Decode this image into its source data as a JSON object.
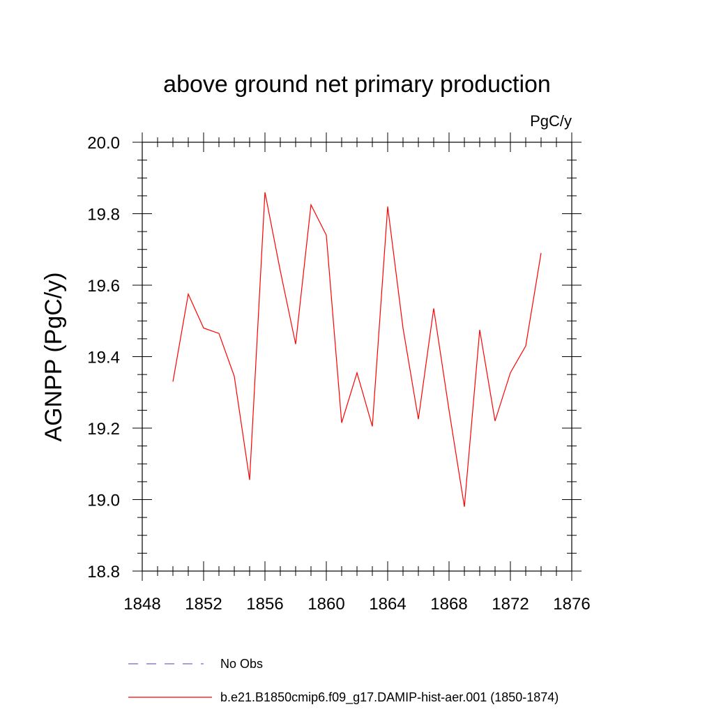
{
  "chart_data": {
    "type": "line",
    "title": "above ground net primary production",
    "units_label": "PgC/y",
    "ylabel": "AGNPP  (PgC/y)",
    "xlabel": "",
    "xlim": [
      1848,
      1876
    ],
    "ylim": [
      18.8,
      20.0
    ],
    "x_ticks": [
      "1848",
      "1852",
      "1856",
      "1860",
      "1864",
      "1868",
      "1872",
      "1876"
    ],
    "y_ticks": [
      "18.8",
      "19.0",
      "19.2",
      "19.4",
      "19.6",
      "19.8",
      "20.0"
    ],
    "grid": false,
    "legend_placement": "bottom",
    "series": [
      {
        "name": "No Obs",
        "color": "#7b68c8",
        "style": "dashed",
        "x": [],
        "values": []
      },
      {
        "name": "b.e21.B1850cmip6.f09_g17.DAMIP-hist-aer.001 (1850-1874)",
        "color": "#ff0000",
        "style": "solid",
        "x": [
          1850,
          1851,
          1852,
          1853,
          1854,
          1855,
          1856,
          1857,
          1858,
          1859,
          1860,
          1861,
          1862,
          1863,
          1864,
          1865,
          1866,
          1867,
          1868,
          1869,
          1870,
          1871,
          1872,
          1873,
          1874
        ],
        "values": [
          19.33,
          19.575,
          19.48,
          19.465,
          19.345,
          19.055,
          19.86,
          19.64,
          19.435,
          19.825,
          19.74,
          19.215,
          19.355,
          19.205,
          19.82,
          19.48,
          19.225,
          19.535,
          19.25,
          18.98,
          19.475,
          19.22,
          19.355,
          19.43,
          19.69
        ]
      }
    ]
  }
}
